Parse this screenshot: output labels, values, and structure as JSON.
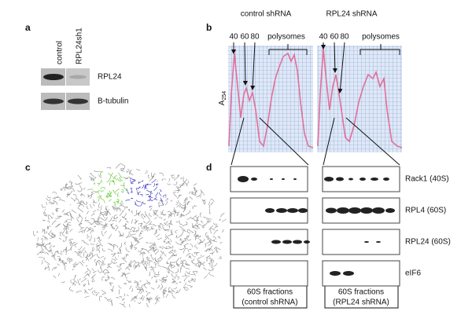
{
  "panels": {
    "a": {
      "label": "a",
      "lanes": [
        "control",
        "RPL24sh1"
      ],
      "rows": [
        "RPL24",
        "B-tubulin"
      ]
    },
    "b": {
      "label": "b",
      "ylabel": {
        "text": "A",
        "subscript": "254"
      },
      "profiles": [
        {
          "title": "control shRNA",
          "peaks": [
            "40",
            "60",
            "80"
          ],
          "polysomes": "polysomes"
        },
        {
          "title": "RPL24 shRNA",
          "peaks": [
            "40",
            "60",
            "80"
          ],
          "polysomes": "polysomes"
        }
      ]
    },
    "c": {
      "label": "c"
    },
    "d": {
      "label": "d",
      "rows": [
        "Rack1 (40S)",
        "RPL4 (60S)",
        "RPL24 (60S)",
        "eIF6"
      ],
      "groups": [
        {
          "line1": "60S fractions",
          "line2": "(control shRNA)"
        },
        {
          "line1": "60S fractions",
          "line2": "(RPL24  shRNA)"
        }
      ]
    }
  }
}
